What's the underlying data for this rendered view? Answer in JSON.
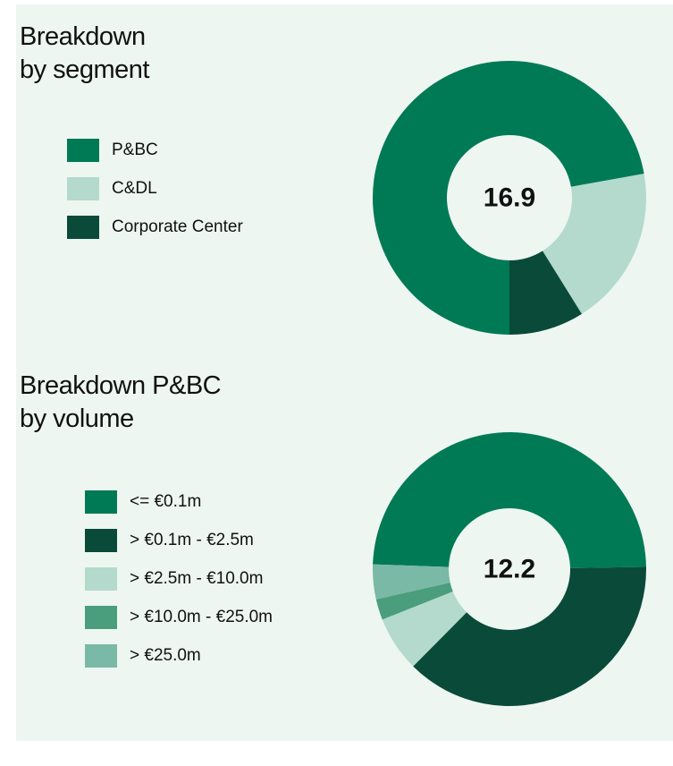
{
  "chart_data": [
    {
      "type": "pie",
      "title": "Breakdown\nby segment",
      "total": 16.9,
      "categories": [
        "P&BC",
        "C&DL",
        "Corporate Center"
      ],
      "values": [
        12.2,
        3.2,
        1.5
      ],
      "colors": [
        "#007a55",
        "#b3dacd",
        "#0a4a38"
      ]
    },
    {
      "type": "pie",
      "title": "Breakdown P&BC\nby volume",
      "total": 12.2,
      "categories": [
        "<= €0.1m",
        "> €0.1m - €2.5m",
        "> €2.5m - €10.0m",
        "> €10.0m - €25.0m",
        "> €25.0m"
      ],
      "values": [
        6.0,
        4.6,
        0.8,
        0.3,
        0.5
      ],
      "colors": [
        "#007a55",
        "#0a4a38",
        "#b3dacd",
        "#4a9e7e",
        "#7ab9a6"
      ]
    }
  ]
}
